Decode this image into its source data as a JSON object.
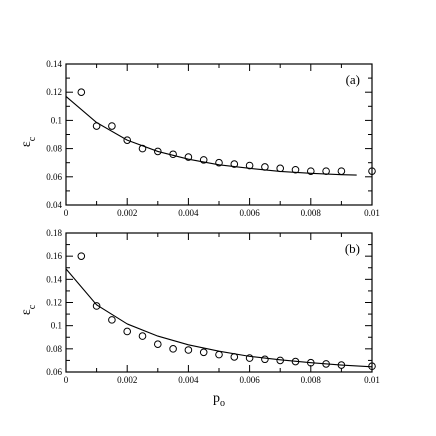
{
  "chart_data": [
    {
      "type": "scatter",
      "panel_label": "(a)",
      "ylabel_main": "ε",
      "ylabel_sub": "c",
      "xlabel_main": "",
      "xlabel_sub": "",
      "xlim": [
        0,
        0.01
      ],
      "ylim": [
        0.04,
        0.14
      ],
      "xticks": [
        0,
        0.002,
        0.004,
        0.006,
        0.008,
        0.01
      ],
      "xtick_labels": [
        "0",
        "0.002",
        "0.004",
        "0.006",
        "0.008",
        "0.01"
      ],
      "yticks": [
        0.04,
        0.06,
        0.08,
        0.1,
        0.12,
        0.14
      ],
      "ytick_labels": [
        "0.04",
        "0.06",
        "0.08",
        "0.1",
        "0.12",
        "0.14"
      ],
      "series": [
        {
          "style": "open-circle",
          "x": [
            0.0005,
            0.001,
            0.0015,
            0.002,
            0.0025,
            0.003,
            0.0035,
            0.004,
            0.0045,
            0.005,
            0.0055,
            0.006,
            0.0065,
            0.007,
            0.0075,
            0.008,
            0.0085,
            0.009,
            0.01
          ],
          "y": [
            0.12,
            0.096,
            0.096,
            0.086,
            0.08,
            0.078,
            0.076,
            0.074,
            0.072,
            0.07,
            0.069,
            0.068,
            0.067,
            0.066,
            0.065,
            0.064,
            0.064,
            0.064,
            0.064
          ]
        },
        {
          "style": "line",
          "x": [
            0,
            0.001,
            0.002,
            0.003,
            0.004,
            0.005,
            0.006,
            0.007,
            0.008,
            0.009,
            0.0095
          ],
          "y": [
            0.117,
            0.0985,
            0.086,
            0.078,
            0.0725,
            0.0685,
            0.066,
            0.0638,
            0.0625,
            0.0615,
            0.0612
          ]
        }
      ]
    },
    {
      "type": "scatter",
      "panel_label": "(b)",
      "ylabel_main": "ε",
      "ylabel_sub": "c",
      "xlabel_main": "p",
      "xlabel_sub": "o",
      "xlim": [
        0,
        0.01
      ],
      "ylim": [
        0.06,
        0.18
      ],
      "xticks": [
        0,
        0.002,
        0.004,
        0.006,
        0.008,
        0.01
      ],
      "xtick_labels": [
        "0",
        "0.002",
        "0.004",
        "0.006",
        "0.008",
        "0.01"
      ],
      "yticks": [
        0.06,
        0.08,
        0.1,
        0.12,
        0.14,
        0.16,
        0.18
      ],
      "ytick_labels": [
        "0.06",
        "0.08",
        "0.1",
        "0.12",
        "0.14",
        "0.16",
        "0.18"
      ],
      "series": [
        {
          "style": "open-circle",
          "x": [
            0.0005,
            0.001,
            0.0015,
            0.002,
            0.0025,
            0.003,
            0.0035,
            0.004,
            0.0045,
            0.005,
            0.0055,
            0.006,
            0.0065,
            0.007,
            0.0075,
            0.008,
            0.0085,
            0.009,
            0.01
          ],
          "y": [
            0.16,
            0.117,
            0.105,
            0.095,
            0.091,
            0.084,
            0.08,
            0.079,
            0.077,
            0.075,
            0.073,
            0.072,
            0.071,
            0.07,
            0.069,
            0.068,
            0.067,
            0.066,
            0.065
          ]
        },
        {
          "style": "line",
          "x": [
            0,
            0.001,
            0.002,
            0.003,
            0.004,
            0.005,
            0.006,
            0.007,
            0.008,
            0.009,
            0.01
          ],
          "y": [
            0.149,
            0.118,
            0.1015,
            0.091,
            0.0835,
            0.078,
            0.0735,
            0.0705,
            0.068,
            0.066,
            0.0645
          ]
        }
      ]
    }
  ]
}
